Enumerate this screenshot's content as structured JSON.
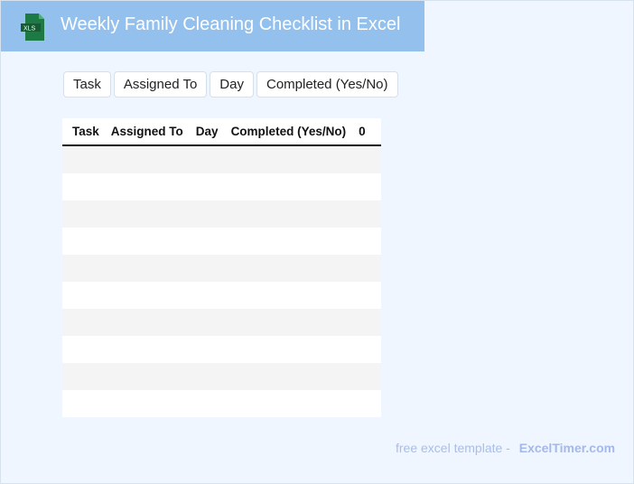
{
  "header": {
    "title": "Weekly Family Cleaning Checklist in Excel",
    "logo_text": "XLS",
    "color": "#93c0ec"
  },
  "chips": [
    "Task",
    "Assigned To",
    "Day",
    "Completed (Yes/No)"
  ],
  "table": {
    "columns": [
      "Task",
      "Assigned To",
      "Day",
      "Completed (Yes/No)",
      "0"
    ],
    "rows": [
      [],
      [],
      [],
      [],
      [],
      [],
      [],
      [],
      [],
      []
    ]
  },
  "footer": {
    "text": "free excel template -",
    "brand": "ExcelTimer.com"
  }
}
